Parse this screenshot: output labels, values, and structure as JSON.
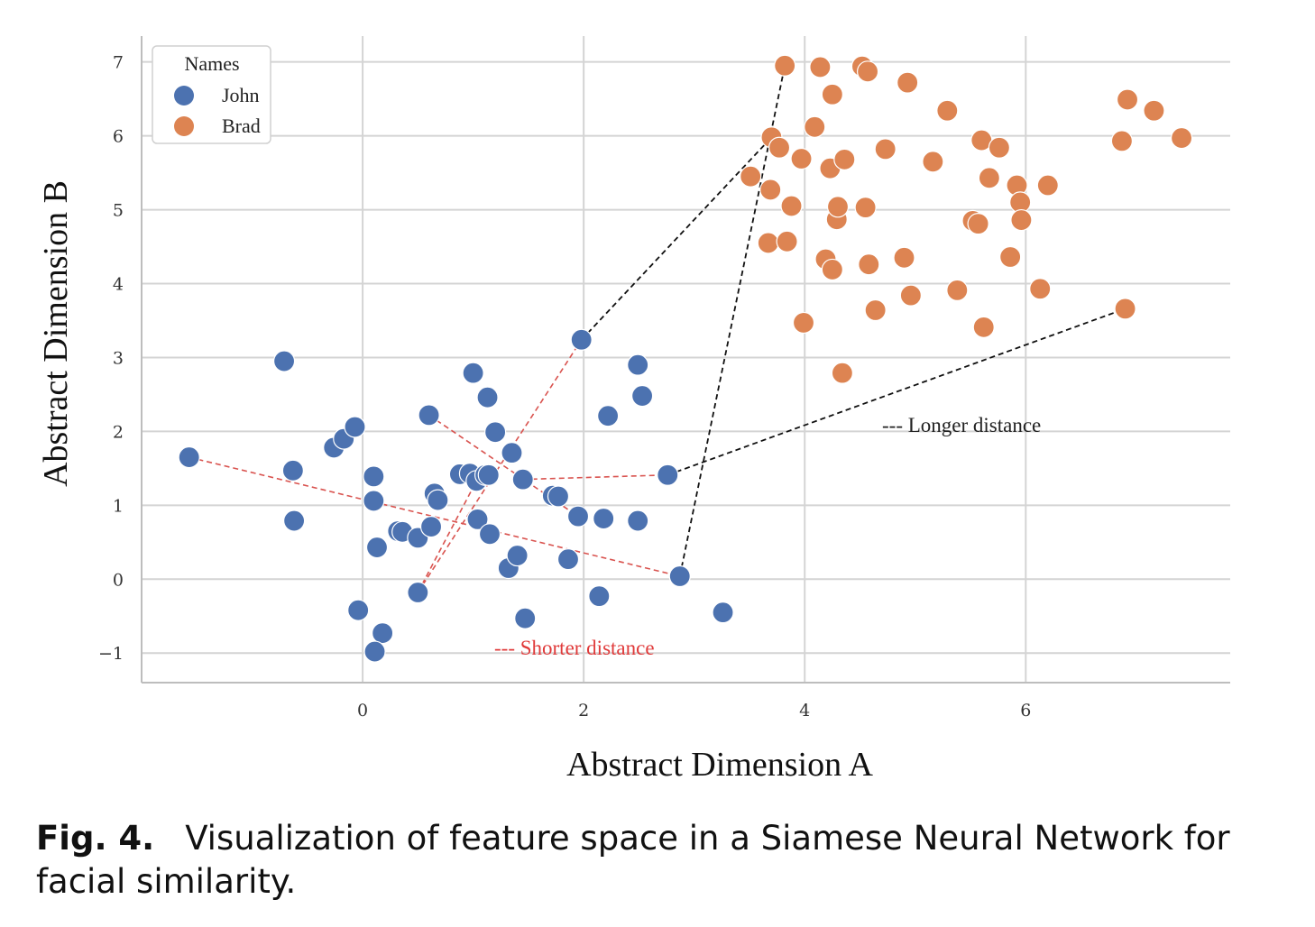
{
  "caption": {
    "label": "Fig. 4.",
    "text": "Visualization of feature space in a Siamese Neural Network for facial similarity."
  },
  "chart_data": {
    "type": "scatter",
    "xlabel": "Abstract Dimension A",
    "ylabel": "Abstract Dimension B",
    "xlim": [
      -2.0,
      7.85
    ],
    "ylim": [
      -1.4,
      7.35
    ],
    "xticks": [
      0,
      2,
      4,
      6
    ],
    "yticks": [
      -1,
      0,
      1,
      2,
      3,
      4,
      5,
      6,
      7
    ],
    "xtick_labels": [
      "0",
      "2",
      "4",
      "6"
    ],
    "ytick_labels": [
      "−1",
      "0",
      "1",
      "2",
      "3",
      "4",
      "5",
      "6",
      "7"
    ],
    "grid": true,
    "legend": {
      "title": "Names",
      "placement": "top-left"
    },
    "series": [
      {
        "name": "John",
        "color": "#4C72B0",
        "points": [
          [
            -1.57,
            1.65
          ],
          [
            -0.71,
            2.95
          ],
          [
            -0.63,
            1.47
          ],
          [
            -0.62,
            0.79
          ],
          [
            -0.26,
            1.78
          ],
          [
            -0.17,
            1.9
          ],
          [
            -0.07,
            2.06
          ],
          [
            -0.04,
            -0.42
          ],
          [
            0.1,
            1.39
          ],
          [
            0.1,
            1.06
          ],
          [
            0.13,
            0.43
          ],
          [
            0.18,
            -0.73
          ],
          [
            0.11,
            -0.98
          ],
          [
            0.32,
            0.65
          ],
          [
            0.36,
            0.64
          ],
          [
            0.5,
            0.56
          ],
          [
            0.5,
            -0.18
          ],
          [
            0.6,
            2.22
          ],
          [
            0.62,
            0.71
          ],
          [
            0.65,
            1.16
          ],
          [
            0.68,
            1.07
          ],
          [
            0.88,
            1.42
          ],
          [
            0.97,
            1.43
          ],
          [
            1.0,
            2.79
          ],
          [
            1.03,
            1.33
          ],
          [
            1.04,
            0.81
          ],
          [
            1.11,
            1.41
          ],
          [
            1.14,
            1.41
          ],
          [
            1.13,
            2.46
          ],
          [
            1.15,
            0.61
          ],
          [
            1.2,
            1.99
          ],
          [
            1.32,
            0.15
          ],
          [
            1.35,
            1.71
          ],
          [
            1.4,
            0.32
          ],
          [
            1.45,
            1.35
          ],
          [
            1.47,
            -0.53
          ],
          [
            1.72,
            1.13
          ],
          [
            1.77,
            1.12
          ],
          [
            1.86,
            0.27
          ],
          [
            1.95,
            0.85
          ],
          [
            1.98,
            3.24
          ],
          [
            2.14,
            -0.23
          ],
          [
            2.18,
            0.82
          ],
          [
            2.22,
            2.21
          ],
          [
            2.49,
            2.9
          ],
          [
            2.49,
            0.79
          ],
          [
            2.53,
            2.48
          ],
          [
            2.76,
            1.41
          ],
          [
            2.87,
            0.04
          ],
          [
            3.26,
            -0.45
          ]
        ]
      },
      {
        "name": "Brad",
        "color": "#DD8452",
        "points": [
          [
            3.51,
            5.45
          ],
          [
            3.67,
            4.55
          ],
          [
            3.69,
            5.27
          ],
          [
            3.7,
            5.98
          ],
          [
            3.77,
            5.84
          ],
          [
            3.82,
            6.95
          ],
          [
            3.84,
            4.57
          ],
          [
            3.88,
            5.05
          ],
          [
            3.97,
            5.69
          ],
          [
            3.99,
            3.47
          ],
          [
            4.09,
            6.12
          ],
          [
            4.14,
            6.93
          ],
          [
            4.19,
            4.33
          ],
          [
            4.23,
            5.56
          ],
          [
            4.25,
            6.56
          ],
          [
            4.25,
            4.19
          ],
          [
            4.29,
            4.87
          ],
          [
            4.3,
            5.04
          ],
          [
            4.34,
            2.79
          ],
          [
            4.36,
            5.68
          ],
          [
            4.52,
            6.94
          ],
          [
            4.55,
            5.03
          ],
          [
            4.57,
            6.87
          ],
          [
            4.58,
            4.26
          ],
          [
            4.64,
            3.64
          ],
          [
            4.73,
            5.82
          ],
          [
            4.9,
            4.35
          ],
          [
            4.93,
            6.72
          ],
          [
            4.96,
            3.84
          ],
          [
            5.16,
            5.65
          ],
          [
            5.29,
            6.34
          ],
          [
            5.38,
            3.91
          ],
          [
            5.52,
            4.85
          ],
          [
            5.57,
            4.81
          ],
          [
            5.6,
            5.94
          ],
          [
            5.62,
            3.41
          ],
          [
            5.67,
            5.43
          ],
          [
            5.76,
            5.84
          ],
          [
            5.86,
            4.36
          ],
          [
            5.92,
            5.33
          ],
          [
            5.95,
            5.1
          ],
          [
            5.96,
            4.86
          ],
          [
            6.13,
            3.93
          ],
          [
            6.2,
            5.33
          ],
          [
            6.87,
            5.93
          ],
          [
            6.9,
            3.66
          ],
          [
            6.92,
            6.49
          ],
          [
            7.16,
            6.34
          ],
          [
            7.41,
            5.97
          ]
        ]
      }
    ],
    "annotation_lines": {
      "shorter": {
        "label": "--- Shorter distance",
        "color": "#D9534F",
        "segments": [
          [
            [
              -1.57,
              1.65
            ],
            [
              2.87,
              0.04
            ]
          ],
          [
            [
              0.5,
              -0.18
            ],
            [
              1.98,
              3.24
            ]
          ],
          [
            [
              0.5,
              -0.18
            ],
            [
              1.03,
              1.33
            ]
          ],
          [
            [
              0.6,
              2.22
            ],
            [
              1.95,
              0.85
            ]
          ],
          [
            [
              1.45,
              1.35
            ],
            [
              2.76,
              1.41
            ]
          ]
        ]
      },
      "longer": {
        "label": "--- Longer distance",
        "color": "#111111",
        "segments": [
          [
            [
              1.98,
              3.24
            ],
            [
              3.7,
              5.98
            ]
          ],
          [
            [
              2.87,
              0.04
            ],
            [
              3.82,
              6.95
            ]
          ],
          [
            [
              2.76,
              1.41
            ],
            [
              6.9,
              3.66
            ]
          ]
        ]
      }
    }
  }
}
